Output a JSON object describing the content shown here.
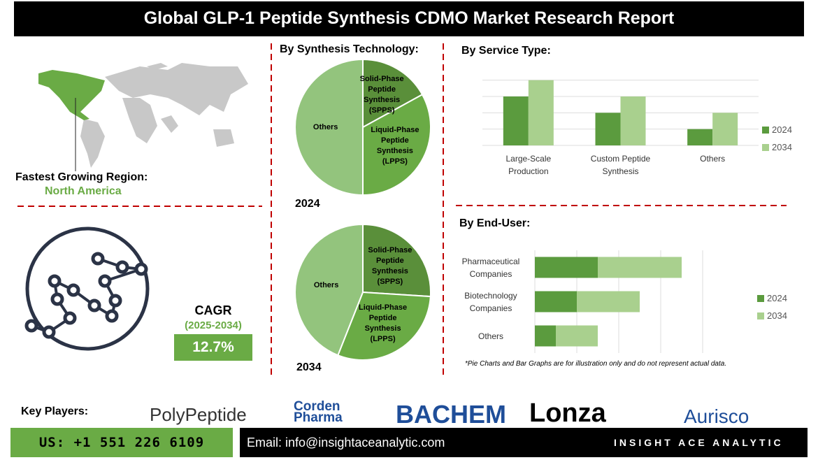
{
  "header": {
    "title": "Global GLP-1 Peptide Synthesis CDMO Market  Research Report"
  },
  "region": {
    "label": "Fastest Growing Region:",
    "value": "North America"
  },
  "cagr": {
    "label": "CAGR",
    "period": "(2025-2034)",
    "value": "12.7%"
  },
  "key_players": {
    "label": "Key Players:",
    "names": [
      "PolyPeptide",
      "Corden Pharma",
      "BACHEM",
      "Lonza",
      "Aurisco"
    ]
  },
  "footer": {
    "phone": "US: +1 551 226 6109",
    "email": "Email: info@insightaceanalytic.com",
    "brand": "INSIGHT ACE ANALYTIC"
  },
  "note": "*Pie Charts and Bar Graphs are for illustration only and do not represent actual data.",
  "chart_data": [
    {
      "type": "pie",
      "title": "By Synthesis Technology:",
      "subtitle": "2024",
      "categories": [
        "Solid-Phase Peptide Synthesis (SPPS)",
        "Liquid-Phase Peptide Synthesis (LPPS)",
        "Others"
      ],
      "values": [
        17,
        33,
        50
      ],
      "colors": [
        "#5a8f3a",
        "#6aab45",
        "#93c47d"
      ]
    },
    {
      "type": "pie",
      "subtitle": "2034",
      "categories": [
        "Solid-Phase Peptide Synthesis (SPPS)",
        "Liquid-Phase Peptide Synthesis (LPPS)",
        "Others"
      ],
      "values": [
        26,
        30,
        44
      ],
      "colors": [
        "#5a8f3a",
        "#6aab45",
        "#93c47d"
      ]
    },
    {
      "type": "bar",
      "title": "By Service Type:",
      "categories": [
        "Large-Scale Production",
        "Custom Peptide Synthesis",
        "Others"
      ],
      "series": [
        {
          "name": "2024",
          "color": "#5b9b3e",
          "values": [
            3,
            2,
            1
          ]
        },
        {
          "name": "2034",
          "color": "#a9d08e",
          "values": [
            4,
            3,
            2
          ]
        }
      ],
      "ylim": [
        0,
        4.5
      ],
      "yticks": [
        0,
        1,
        2,
        3,
        4
      ],
      "grid": true,
      "legend": "right"
    },
    {
      "type": "hbar",
      "stacked": true,
      "title": "By End-User:",
      "categories": [
        "Pharmaceutical Companies",
        "Biotechnology Companies",
        "Others"
      ],
      "series": [
        {
          "name": "2024",
          "color": "#5b9b3e",
          "values": [
            3,
            2,
            1
          ]
        },
        {
          "name": "2034",
          "color": "#a9d08e",
          "values": [
            4,
            3,
            2
          ]
        }
      ],
      "xlim": [
        0,
        8
      ],
      "xticks": [
        0,
        2,
        4,
        6,
        8
      ],
      "grid": true,
      "legend": "right"
    }
  ]
}
